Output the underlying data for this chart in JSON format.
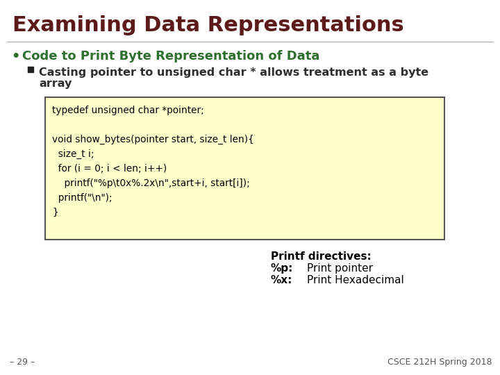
{
  "title": "Examining Data Representations",
  "title_color": "#5c1a1a",
  "bg_color": "#ffffff",
  "bullet_color": "#2e6e2e",
  "bullet_text": "Code to Print Byte Representation of Data",
  "sub_bullet_color": "#2e2e2e",
  "sub_bullet_line1": "Casting pointer to unsigned char * allows treatment as a byte",
  "sub_bullet_line2": "array",
  "code_bg": "#ffffcc",
  "code_border": "#555555",
  "code_lines": [
    "typedef unsigned char *pointer;",
    "",
    "void show_bytes(pointer start, size_t len){",
    "  size_t i;",
    "  for (i = 0; i < len; i++)",
    "    printf(\"%p\\t0x%.2x\\n\",start+i, start[i]);",
    "  printf(\"\\n\");",
    "}"
  ],
  "printf_title": "Printf directives:",
  "printf_lines": [
    [
      "%p:",
      "Print pointer"
    ],
    [
      "%x:",
      "Print Hexadecimal"
    ]
  ],
  "footer_left": "– 29 –",
  "footer_right": "CSCE 212H Spring 2018"
}
